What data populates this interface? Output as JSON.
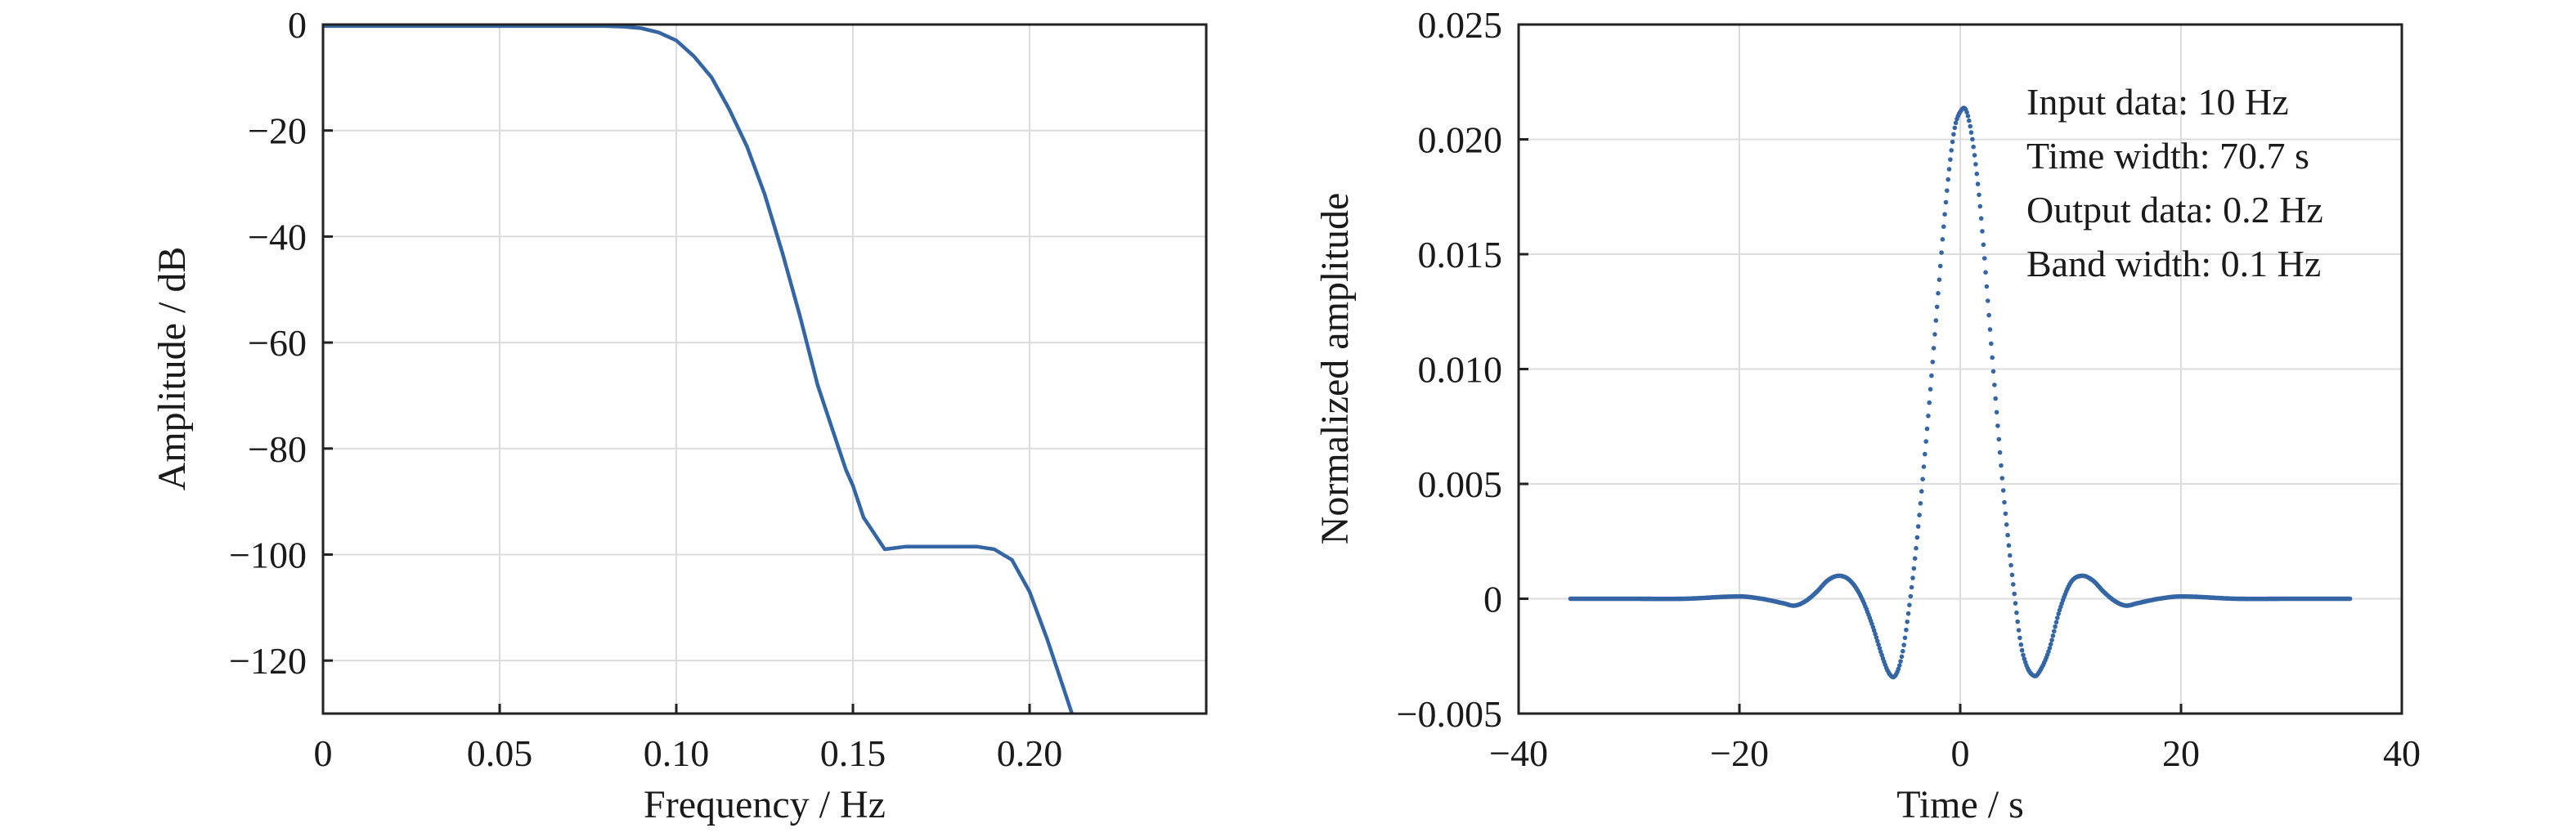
{
  "chart_data": [
    {
      "type": "line",
      "xlabel": "Frequency / Hz",
      "ylabel": "Amplitude / dB",
      "xlim": [
        0,
        0.25
      ],
      "ylim": [
        -130,
        0
      ],
      "grid": true,
      "line_color": "#3465a4",
      "x_ticks": [
        0,
        0.05,
        0.1,
        0.15,
        0.2
      ],
      "x_tick_labels": [
        "0",
        "0.05",
        "0.10",
        "0.15",
        "0.20"
      ],
      "y_ticks": [
        0,
        -20,
        -40,
        -60,
        -80,
        -100,
        -120
      ],
      "y_tick_labels": [
        "0",
        "−20",
        "−40",
        "−60",
        "−80",
        "−100",
        "−120"
      ],
      "x": [
        0,
        0.05,
        0.08,
        0.085,
        0.09,
        0.095,
        0.1,
        0.105,
        0.11,
        0.115,
        0.12,
        0.125,
        0.13,
        0.135,
        0.14,
        0.145,
        0.148,
        0.15,
        0.153,
        0.159,
        0.165,
        0.17,
        0.175,
        0.18,
        0.185,
        0.19,
        0.195,
        0.2,
        0.205,
        0.209,
        0.212
      ],
      "y": [
        -0.3,
        -0.3,
        -0.3,
        -0.4,
        -0.7,
        -1.5,
        -3,
        -6,
        -10,
        -16,
        -23,
        -32,
        -43,
        -55,
        -68,
        -78,
        -84,
        -87,
        -93,
        -99,
        -98.5,
        -98.5,
        -98.5,
        -98.5,
        -98.5,
        -99,
        -101,
        -107,
        -116,
        -124,
        -130
      ]
    },
    {
      "type": "scatter",
      "xlabel": "Time / s",
      "ylabel": "Normalized amplitude",
      "xlim": [
        -40,
        40
      ],
      "ylim": [
        -0.005,
        0.025
      ],
      "grid": true,
      "marker_color": "#3465a4",
      "x_ticks": [
        -40,
        -20,
        0,
        20,
        40
      ],
      "x_tick_labels": [
        "−40",
        "−20",
        "0",
        "20",
        "40"
      ],
      "y_ticks": [
        -0.005,
        0,
        0.005,
        0.01,
        0.015,
        0.02,
        0.025
      ],
      "y_tick_labels": [
        "−0.005",
        "0",
        "0.005",
        "0.010",
        "0.015",
        "0.020",
        "0.025"
      ],
      "x": [
        -35.3,
        -30,
        -25,
        -20,
        -18,
        -16,
        -15,
        -14,
        -13,
        -12,
        -11,
        -10,
        -9,
        -8,
        -7,
        -6.5,
        -6,
        -5.5,
        -5,
        -4,
        -3,
        -2,
        -1.5,
        -1,
        -0.5,
        0,
        0.5,
        1,
        1.5,
        2,
        3,
        4,
        5,
        5.5,
        6,
        6.5,
        7,
        8,
        9,
        10,
        11,
        12,
        13,
        14,
        15,
        16,
        18,
        20,
        25,
        30,
        35.3
      ],
      "y": [
        0,
        0,
        0,
        0.0001,
        0,
        -0.0002,
        -0.0003,
        -0.0001,
        0.0003,
        0.0008,
        0.001,
        0.0008,
        0.0001,
        -0.0011,
        -0.0026,
        -0.0032,
        -0.0034,
        -0.0029,
        -0.0017,
        0.0022,
        0.0074,
        0.0133,
        0.0162,
        0.0187,
        0.0205,
        0.0212,
        0.0213,
        0.0203,
        0.0185,
        0.016,
        0.0099,
        0.0042,
        -0.0002,
        -0.002,
        -0.0029,
        -0.0033,
        -0.0033,
        -0.0023,
        -0.0005,
        0.0007,
        0.001,
        0.0008,
        0.0003,
        -0.0001,
        -0.0003,
        -0.0002,
        0,
        0.0001,
        0,
        0,
        0
      ]
    }
  ],
  "annotation": {
    "lines": [
      "Input data: 10 Hz",
      "Time width: 70.7 s",
      "Output data: 0.2 Hz",
      "Band width: 0.1 Hz"
    ]
  }
}
